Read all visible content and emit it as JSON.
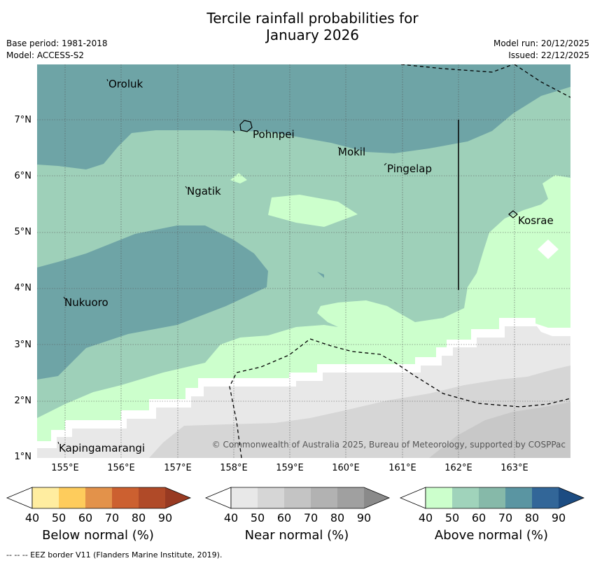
{
  "title_line1": "Tercile rainfall probabilities for",
  "title_line2": "January 2026",
  "base_period": "Base period: 1981-2018",
  "model": "Model: ACCESS-S2",
  "model_run": "Model run: 20/12/2025",
  "issued": "Issued: 22/12/2025",
  "lat_labels": [
    "7°N",
    "6°N",
    "5°N",
    "4°N",
    "3°N",
    "2°N",
    "1°N"
  ],
  "lon_labels": [
    "155°E",
    "156°E",
    "157°E",
    "158°E",
    "159°E",
    "160°E",
    "161°E",
    "162°E",
    "163°E"
  ],
  "places": [
    "Oroluk",
    "Pohnpei",
    "Mokil",
    "Pingelap",
    "Ngatik",
    "Kosrae",
    "Nukuoro",
    "Kapingamarangi"
  ],
  "copyright": "© Commonwealth of Australia 2025, Bureau of Meteorology, supported by COSPPac",
  "legend": {
    "ticks": [
      "40",
      "50",
      "60",
      "70",
      "80",
      "90"
    ],
    "below_title": "Below normal (%)",
    "near_title": "Near normal (%)",
    "above_title": "Above normal (%)",
    "below_colors": [
      "#ffeda0",
      "#fecc5c",
      "#e3924a",
      "#cc6030",
      "#b04a28",
      "#983a22"
    ],
    "near_colors": [
      "#e8e8e8",
      "#d6d6d6",
      "#c4c4c4",
      "#b2b2b2",
      "#a0a0a0",
      "#8a8a8a"
    ],
    "above_colors": [
      "#ccffcc",
      "#a0d3bb",
      "#86b9a9",
      "#5a95a2",
      "#326698",
      "#1c4c82"
    ]
  },
  "eez_note": "--  --  -- EEZ border V11 (Flanders Marine Institute, 2019)."
}
